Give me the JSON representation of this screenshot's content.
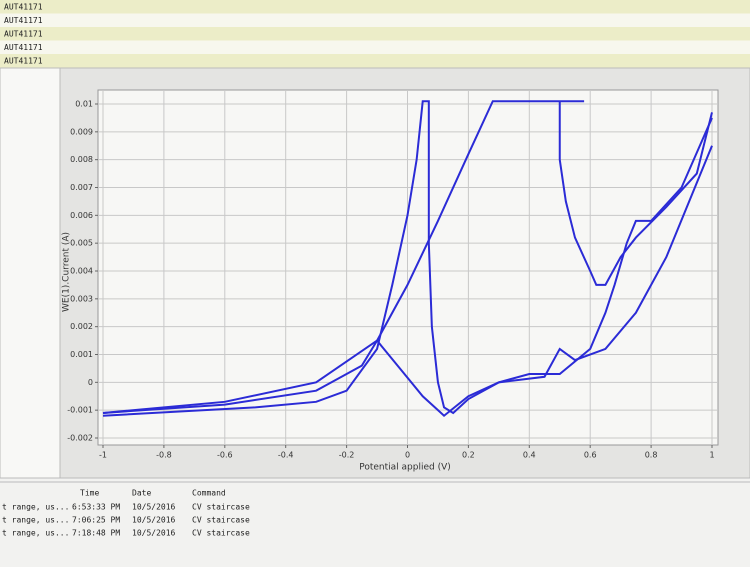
{
  "header_rows": [
    "AUT41171",
    "AUT41171",
    "AUT41171",
    "AUT41171",
    "AUT41171"
  ],
  "chart_data": {
    "type": "line",
    "xlabel": "Potential applied (V)",
    "ylabel": "WE(1).Current (A)",
    "xlim": [
      -1,
      1
    ],
    "xticks": [
      -1,
      -0.8,
      -0.6,
      -0.4,
      -0.2,
      0,
      0.2,
      0.4,
      0.6,
      0.8,
      1
    ],
    "ylim": [
      -0.002,
      0.01
    ],
    "yticks": [
      -0.002,
      -0.001,
      0,
      0.001,
      0.002,
      0.003,
      0.004,
      0.005,
      0.006,
      0.007,
      0.008,
      0.009,
      0.01
    ],
    "grid": true,
    "series": [
      {
        "color": "#2b2bd6",
        "x": [
          -1,
          -0.6,
          -0.3,
          -0.15,
          -0.1,
          0,
          0.1,
          0.2,
          0.28,
          0.58
        ],
        "values": [
          -0.0011,
          -0.0008,
          -0.0003,
          0.0006,
          0.0015,
          0.0035,
          0.0058,
          0.0082,
          0.0101,
          0.0101
        ]
      },
      {
        "color": "#2b2bd6",
        "x": [
          0.5,
          0.5,
          0.52,
          0.55,
          0.6,
          0.62,
          0.65,
          0.7,
          0.75,
          0.85,
          0.95,
          1
        ],
        "values": [
          0.0101,
          0.008,
          0.0065,
          0.0052,
          0.004,
          0.0035,
          0.0035,
          0.0045,
          0.0052,
          0.0063,
          0.0075,
          0.0097
        ]
      },
      {
        "color": "#2b2bd6",
        "x": [
          -1,
          -0.5,
          -0.3,
          -0.2,
          -0.1,
          -0.05,
          0,
          0.03,
          0.05,
          0.07,
          0.07,
          0.08,
          0.1,
          0.12,
          0.15,
          0.2,
          0.3,
          0.45,
          0.5,
          0.55,
          0.65,
          0.75,
          0.85,
          1
        ],
        "values": [
          -0.0012,
          -0.0009,
          -0.0007,
          -0.0003,
          0.0012,
          0.0035,
          0.006,
          0.008,
          0.0101,
          0.0101,
          0.005,
          0.002,
          0,
          -0.0009,
          -0.0011,
          -0.0006,
          0,
          0.0002,
          0.0012,
          0.0008,
          0.0012,
          0.0025,
          0.0045,
          0.0085
        ]
      },
      {
        "color": "#2b2bd6",
        "x": [
          1,
          0.9,
          0.8,
          0.75,
          0.72,
          0.68,
          0.65,
          0.6,
          0.5,
          0.4,
          0.3,
          0.2,
          0.12,
          0.1,
          0.05,
          -0.1,
          -0.3,
          -0.6,
          -1
        ],
        "values": [
          0.0095,
          0.007,
          0.0058,
          0.0058,
          0.005,
          0.0035,
          0.0025,
          0.0012,
          0.0003,
          0.0003,
          0,
          -0.0005,
          -0.0012,
          -0.001,
          -0.0005,
          0.0015,
          0,
          -0.0007,
          -0.0011
        ]
      }
    ]
  },
  "table": {
    "headers": [
      "Time",
      "Date",
      "Command"
    ],
    "rows": [
      [
        "t range, us...",
        "6:53:33 PM",
        "10/5/2016",
        "CV staircase"
      ],
      [
        "t range, us...",
        "7:06:25 PM",
        "10/5/2016",
        "CV staircase"
      ],
      [
        "t range, us...",
        "7:18:48 PM",
        "10/5/2016",
        "CV staircase"
      ]
    ]
  }
}
